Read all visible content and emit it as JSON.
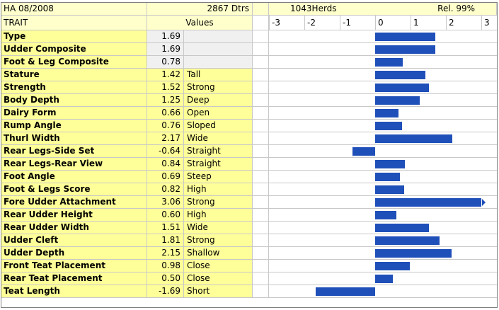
{
  "header": {
    "title": "HA 08/2008",
    "dtrs": "2867 Dtrs",
    "herds": "1043Herds",
    "rel": "Rel. 99%",
    "col_trait": "TRAIT",
    "col_values": "Values",
    "axis_ticks": [
      "-3",
      "-2",
      "-1",
      "0",
      "1",
      "2",
      "3"
    ]
  },
  "colors": {
    "bar": "#1f4fb8",
    "trait_bg": "#ffff99",
    "header_bg": "#ffffcc"
  },
  "traits": [
    {
      "name": "Type",
      "value": "1.69",
      "desc": ""
    },
    {
      "name": "Udder Composite",
      "value": "1.69",
      "desc": ""
    },
    {
      "name": "Foot & Leg Composite",
      "value": "0.78",
      "desc": ""
    },
    {
      "name": "Stature",
      "value": "1.42",
      "desc": "Tall"
    },
    {
      "name": "Strength",
      "value": "1.52",
      "desc": "Strong"
    },
    {
      "name": "Body Depth",
      "value": "1.25",
      "desc": "Deep"
    },
    {
      "name": "Dairy Form",
      "value": "0.66",
      "desc": "Open"
    },
    {
      "name": "Rump Angle",
      "value": "0.76",
      "desc": "Sloped"
    },
    {
      "name": "Thurl Width",
      "value": "2.17",
      "desc": "Wide"
    },
    {
      "name": "Rear Legs-Side Set",
      "value": "-0.64",
      "desc": "Straight"
    },
    {
      "name": "Rear Legs-Rear View",
      "value": "0.84",
      "desc": "Straight"
    },
    {
      "name": "Foot Angle",
      "value": "0.69",
      "desc": "Steep"
    },
    {
      "name": "Foot & Legs Score",
      "value": "0.82",
      "desc": "High"
    },
    {
      "name": "Fore Udder Attachment",
      "value": "3.06",
      "desc": "Strong"
    },
    {
      "name": "Rear Udder Height",
      "value": "0.60",
      "desc": "High"
    },
    {
      "name": "Rear Udder Width",
      "value": "1.51",
      "desc": "Wide"
    },
    {
      "name": "Udder Cleft",
      "value": "1.81",
      "desc": "Strong"
    },
    {
      "name": "Udder Depth",
      "value": "2.15",
      "desc": "Shallow"
    },
    {
      "name": "Front Teat Placement",
      "value": "0.98",
      "desc": "Close"
    },
    {
      "name": "Rear Teat Placement",
      "value": "0.50",
      "desc": "Close"
    },
    {
      "name": "Teat Length",
      "value": "-1.69",
      "desc": "Short"
    }
  ]
}
